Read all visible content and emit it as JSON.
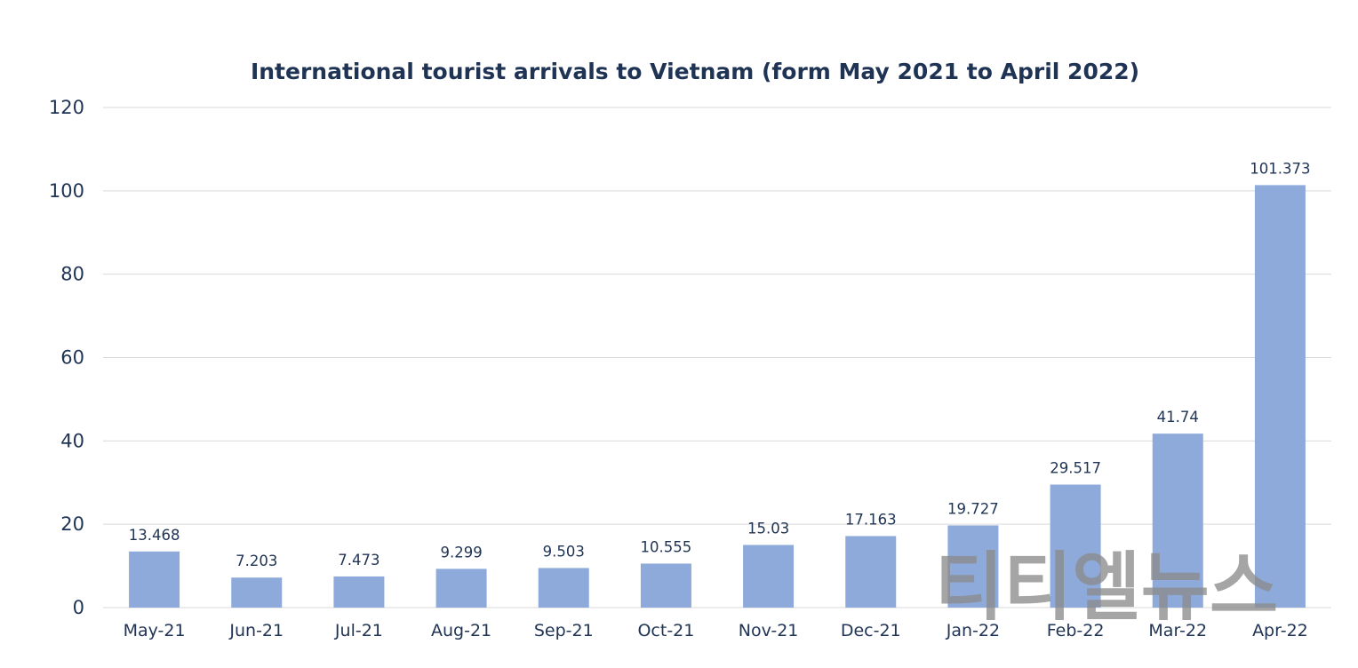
{
  "chart_data": {
    "type": "bar",
    "title": "International tourist arrivals to Vietnam (form May 2021 to April 2022)",
    "xlabel": "",
    "ylabel": "",
    "categories": [
      "May-21",
      "Jun-21",
      "Jul-21",
      "Aug-21",
      "Sep-21",
      "Oct-21",
      "Nov-21",
      "Dec-21",
      "Jan-22",
      "Feb-22",
      "Mar-22",
      "Apr-22"
    ],
    "values": [
      13.468,
      7.203,
      7.473,
      9.299,
      9.503,
      10.555,
      15.03,
      17.163,
      19.727,
      29.517,
      41.74,
      101.373
    ],
    "data_labels": [
      "13.468",
      "7.203",
      "7.473",
      "9.299",
      "9.503",
      "10.555",
      "15.03",
      "17.163",
      "19.727",
      "29.517",
      "41.74",
      "101.373"
    ],
    "ylim": [
      0,
      120
    ],
    "yticks": [
      "0",
      "20",
      "40",
      "60",
      "80",
      "100",
      "120"
    ],
    "grid": true,
    "legend": "none",
    "colors": {
      "bar": "#8eaadb",
      "text": "#1f3354",
      "grid": "#d9d9d9"
    }
  },
  "watermark": "티티엘뉴스"
}
